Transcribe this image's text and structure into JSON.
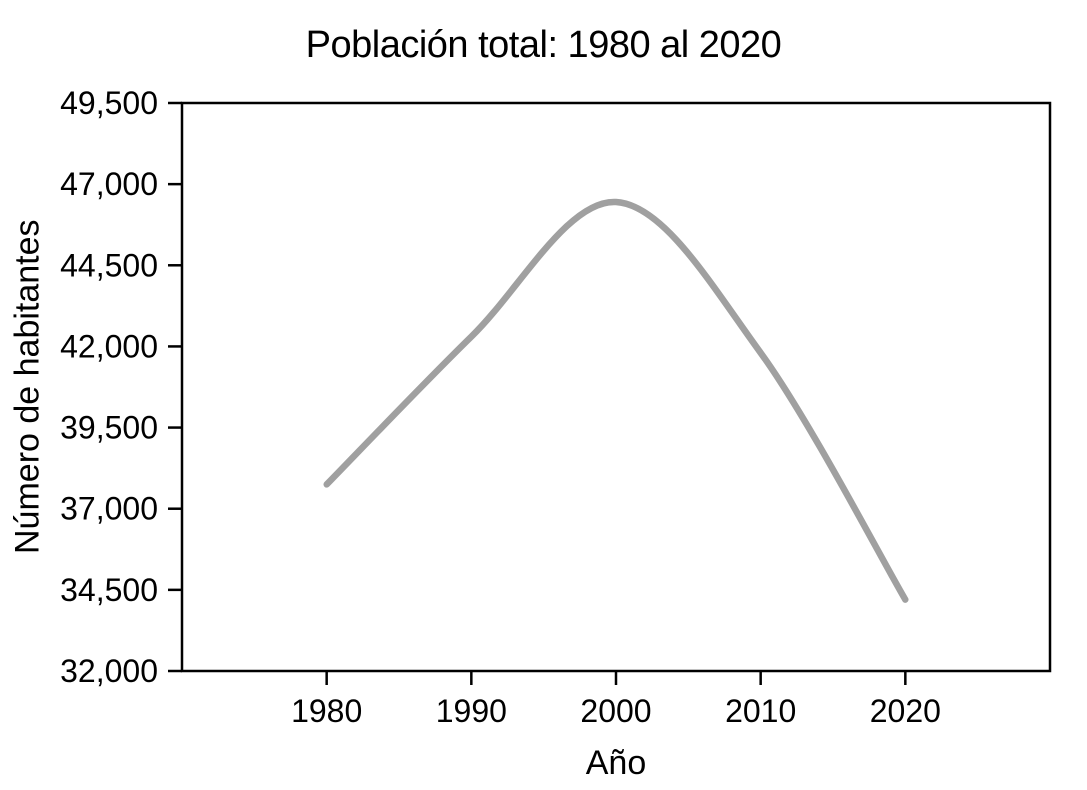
{
  "chart_data": {
    "type": "line",
    "title": "Población total: 1980 al 2020",
    "xlabel": "Año",
    "ylabel": "Número de habitantes",
    "series": [
      {
        "name": "Población total",
        "x": [
          1980,
          1990,
          2000,
          2010,
          2020
        ],
        "values": [
          37750,
          42300,
          46450,
          41800,
          34200
        ]
      }
    ],
    "xlim": [
      1970,
      2030
    ],
    "ylim": [
      32000,
      49500
    ],
    "xticks": [
      1980,
      1990,
      2000,
      2010,
      2020
    ],
    "xtick_labels": [
      "1980",
      "1990",
      "2000",
      "2010",
      "2020"
    ],
    "yticks": [
      32000,
      34500,
      37000,
      39500,
      42000,
      44500,
      47000,
      49500
    ],
    "ytick_labels": [
      "32,000",
      "34,500",
      "37,000",
      "39,500",
      "42,000",
      "44,500",
      "47,000",
      "49,500"
    ],
    "grid": false,
    "legend": false,
    "smooth": true
  },
  "colors": {
    "line": "#A0A0A0",
    "axis": "#000000",
    "background": "#FFFFFF",
    "text": "#000000"
  }
}
